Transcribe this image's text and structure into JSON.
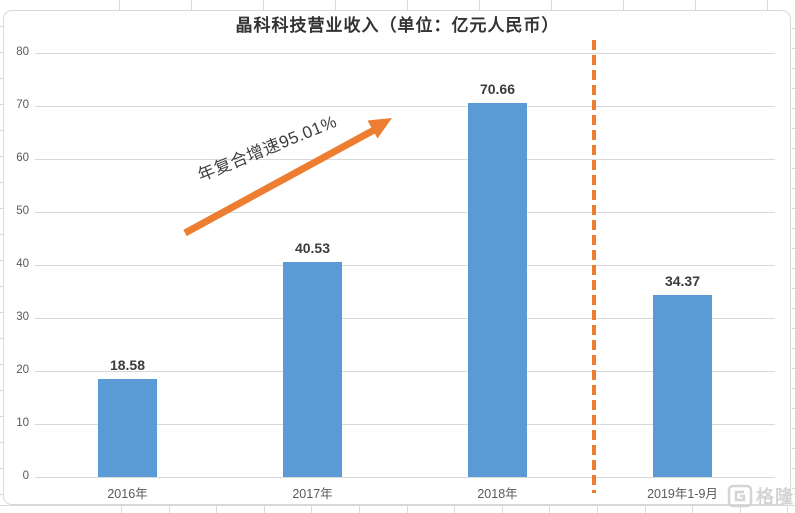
{
  "chart_data": {
    "type": "bar",
    "title": "晶科科技营业收入（单位：亿元人民币）",
    "categories": [
      "2016年",
      "2017年",
      "2018年",
      "2019年1-9月"
    ],
    "values": [
      18.58,
      40.53,
      70.66,
      34.37
    ],
    "value_labels": [
      "18.58",
      "40.53",
      "70.66",
      "34.37"
    ],
    "xlabel": "",
    "ylabel": "",
    "ylim": [
      0,
      80
    ],
    "yticks": [
      0,
      10,
      20,
      30,
      40,
      50,
      60,
      70,
      80
    ],
    "grid": "horizontal",
    "legend": "none",
    "bar_color": "#5B9BD5",
    "accent_color": "#ED7D31",
    "gridline_color": "#D9D9D9",
    "annotation": {
      "text": "年复合增速95.01%",
      "style": "rotated text along an orange upward arrow from 2016 bar to 2018 bar"
    },
    "divider": {
      "style": "vertical orange dashed line",
      "color": "#ED7D31",
      "position": "between 2018年 and 2019年1-9月"
    }
  },
  "watermark": {
    "text": "格隆汇",
    "logo": "gelonghui-g-icon",
    "color": "#D2D2D2"
  }
}
